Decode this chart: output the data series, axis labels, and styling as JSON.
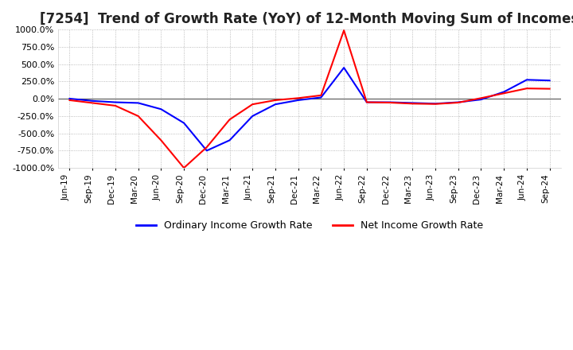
{
  "title": "[7254]  Trend of Growth Rate (YoY) of 12-Month Moving Sum of Incomes",
  "ylim": [
    -1000,
    1000
  ],
  "yticks": [
    -1000,
    -750,
    -500,
    -250,
    0,
    250,
    500,
    750,
    1000
  ],
  "background_color": "#ffffff",
  "plot_bg_color": "#ffffff",
  "grid_color": "#aaaaaa",
  "title_fontsize": 12,
  "legend_labels": [
    "Ordinary Income Growth Rate",
    "Net Income Growth Rate"
  ],
  "legend_colors": [
    "#0000ff",
    "#ff0000"
  ],
  "x_labels": [
    "Jun-19",
    "Sep-19",
    "Dec-19",
    "Mar-20",
    "Jun-20",
    "Sep-20",
    "Dec-20",
    "Mar-21",
    "Jun-21",
    "Sep-21",
    "Dec-21",
    "Mar-22",
    "Jun-22",
    "Sep-22",
    "Dec-22",
    "Mar-23",
    "Jun-23",
    "Sep-23",
    "Dec-23",
    "Mar-24",
    "Jun-24",
    "Sep-24"
  ],
  "ordinary_income_growth": [
    2.0,
    -30.0,
    -50.0,
    -60.0,
    -150.0,
    -350.0,
    -750.0,
    -600.0,
    -250.0,
    -80.0,
    -20.0,
    20.0,
    450.0,
    -50.0,
    -50.0,
    -60.0,
    -70.0,
    -50.0,
    -10.0,
    100.0,
    275.0,
    265.0
  ],
  "net_income_growth": [
    -20.0,
    -60.0,
    -100.0,
    -250.0,
    -600.0,
    -1000.0,
    -700.0,
    -300.0,
    -80.0,
    -20.0,
    10.0,
    50.0,
    990.0,
    -50.0,
    -55.0,
    -70.0,
    -75.0,
    -55.0,
    10.0,
    80.0,
    150.0,
    145.0
  ]
}
